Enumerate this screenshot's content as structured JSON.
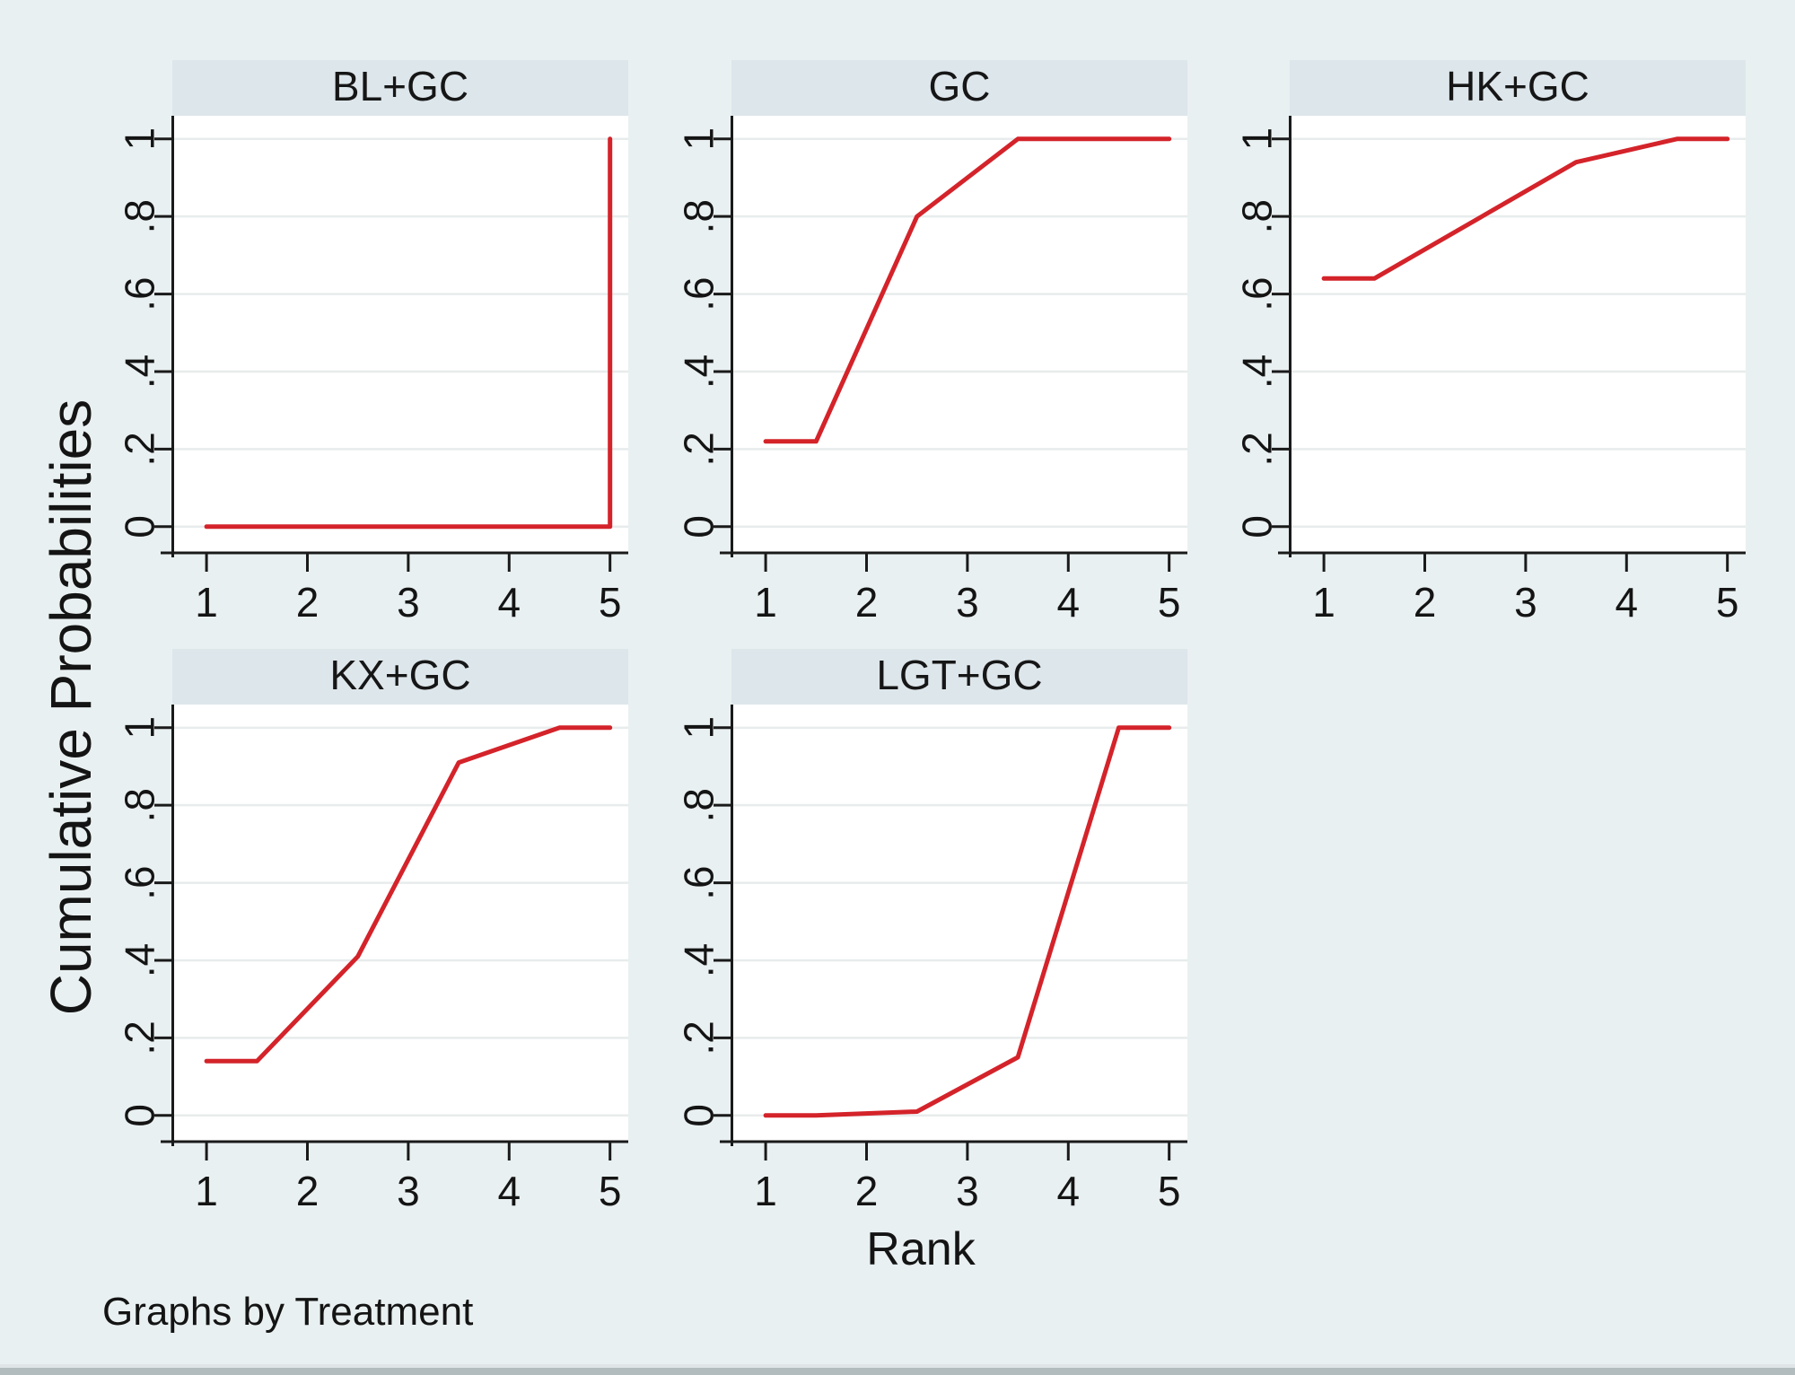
{
  "figure": {
    "ylabel": "Cumulative Probabilities",
    "xlabel": "Rank",
    "note": "Graphs by Treatment"
  },
  "colors": {
    "background": "#e9f0f1",
    "title_band": "#dde6eb",
    "plot_background": "#ffffff",
    "gridline": "#e8ecec",
    "axis": "#1a1a1a",
    "tick_text": "#141414",
    "line": "#d4232a",
    "bottom_border": "#b2bbbe"
  },
  "chart_data": [
    {
      "type": "line",
      "title": "BL+GC",
      "xlabel": "Rank",
      "ylabel": "Cumulative Probabilities",
      "xlim": [
        1,
        5
      ],
      "ylim": [
        0,
        1
      ],
      "x_ticks": [
        1,
        2,
        3,
        4,
        5
      ],
      "x_tick_labels": [
        "1",
        "2",
        "3",
        "4",
        "5"
      ],
      "y_ticks": [
        0,
        0.2,
        0.4,
        0.6,
        0.8,
        1
      ],
      "y_tick_labels": [
        "0",
        ".2",
        ".4",
        ".6",
        ".8",
        "1"
      ],
      "grid": true,
      "line_color": "#d4232a",
      "points": [
        [
          1,
          0
        ],
        [
          5,
          0
        ],
        [
          5,
          1
        ]
      ]
    },
    {
      "type": "line",
      "title": "GC",
      "xlabel": "Rank",
      "ylabel": "Cumulative Probabilities",
      "xlim": [
        1,
        5
      ],
      "ylim": [
        0,
        1
      ],
      "x_ticks": [
        1,
        2,
        3,
        4,
        5
      ],
      "x_tick_labels": [
        "1",
        "2",
        "3",
        "4",
        "5"
      ],
      "y_ticks": [
        0,
        0.2,
        0.4,
        0.6,
        0.8,
        1
      ],
      "y_tick_labels": [
        "0",
        ".2",
        ".4",
        ".6",
        ".8",
        "1"
      ],
      "grid": true,
      "line_color": "#d4232a",
      "points": [
        [
          1,
          0.22
        ],
        [
          1.5,
          0.22
        ],
        [
          2.5,
          0.8
        ],
        [
          3.5,
          1
        ],
        [
          5,
          1
        ]
      ]
    },
    {
      "type": "line",
      "title": "HK+GC",
      "xlabel": "Rank",
      "ylabel": "Cumulative Probabilities",
      "xlim": [
        1,
        5
      ],
      "ylim": [
        0,
        1
      ],
      "x_ticks": [
        1,
        2,
        3,
        4,
        5
      ],
      "x_tick_labels": [
        "1",
        "2",
        "3",
        "4",
        "5"
      ],
      "y_ticks": [
        0,
        0.2,
        0.4,
        0.6,
        0.8,
        1
      ],
      "y_tick_labels": [
        "0",
        ".2",
        ".4",
        ".6",
        ".8",
        "1"
      ],
      "grid": true,
      "line_color": "#d4232a",
      "points": [
        [
          1,
          0.64
        ],
        [
          1.5,
          0.64
        ],
        [
          3.5,
          0.94
        ],
        [
          4.5,
          1
        ],
        [
          5,
          1
        ]
      ]
    },
    {
      "type": "line",
      "title": "KX+GC",
      "xlabel": "Rank",
      "ylabel": "Cumulative Probabilities",
      "xlim": [
        1,
        5
      ],
      "ylim": [
        0,
        1
      ],
      "x_ticks": [
        1,
        2,
        3,
        4,
        5
      ],
      "x_tick_labels": [
        "1",
        "2",
        "3",
        "4",
        "5"
      ],
      "y_ticks": [
        0,
        0.2,
        0.4,
        0.6,
        0.8,
        1
      ],
      "y_tick_labels": [
        "0",
        ".2",
        ".4",
        ".6",
        ".8",
        "1"
      ],
      "grid": true,
      "line_color": "#d4232a",
      "points": [
        [
          1,
          0.14
        ],
        [
          1.5,
          0.14
        ],
        [
          2.5,
          0.41
        ],
        [
          3.5,
          0.91
        ],
        [
          4.5,
          1
        ],
        [
          5,
          1
        ]
      ]
    },
    {
      "type": "line",
      "title": "LGT+GC",
      "xlabel": "Rank",
      "ylabel": "Cumulative Probabilities",
      "xlim": [
        1,
        5
      ],
      "ylim": [
        0,
        1
      ],
      "x_ticks": [
        1,
        2,
        3,
        4,
        5
      ],
      "x_tick_labels": [
        "1",
        "2",
        "3",
        "4",
        "5"
      ],
      "y_ticks": [
        0,
        0.2,
        0.4,
        0.6,
        0.8,
        1
      ],
      "y_tick_labels": [
        "0",
        ".2",
        ".4",
        ".6",
        ".8",
        "1"
      ],
      "grid": true,
      "line_color": "#d4232a",
      "points": [
        [
          1,
          0
        ],
        [
          1.5,
          0
        ],
        [
          2.5,
          0.01
        ],
        [
          3.5,
          0.15
        ],
        [
          4.5,
          1
        ],
        [
          5,
          1
        ]
      ]
    }
  ]
}
